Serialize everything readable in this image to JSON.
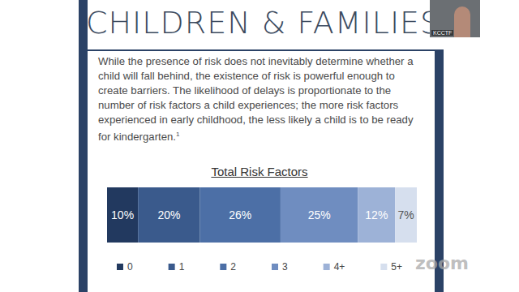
{
  "slide": {
    "title": "CHILDREN & FAMILIES",
    "body": "While the presence of risk does not inevitably determine whether a child will fall behind, the existence of risk is powerful enough to create barriers. The likelihood of delays is proportionate to the number of risk factors a child experiences; the more risk factors experienced in early childhood, the less likely a child is to be ready for kindergarten.",
    "footnote_mark": "1"
  },
  "overlay": {
    "webcam_label": "KCCTF",
    "watermark": "zoom"
  },
  "chart_data": {
    "type": "bar",
    "title": "Total Risk Factors",
    "orientation": "horizontal",
    "stacked": true,
    "data_labels": true,
    "tick_labels": false,
    "grid": false,
    "legend": "bottom",
    "xlim": [
      0,
      100
    ],
    "series": [
      {
        "name": "0",
        "color": "#22395f",
        "values": [
          10
        ],
        "value_labels": [
          "10%"
        ]
      },
      {
        "name": "1",
        "color": "#3a5a8c",
        "values": [
          20
        ],
        "value_labels": [
          "20%"
        ]
      },
      {
        "name": "2",
        "color": "#4c6fa6",
        "values": [
          26
        ],
        "value_labels": [
          "26%"
        ]
      },
      {
        "name": "3",
        "color": "#6f8dc0",
        "values": [
          25
        ],
        "value_labels": [
          "25%"
        ]
      },
      {
        "name": "4+",
        "color": "#9db2d7",
        "values": [
          12
        ],
        "value_labels": [
          "12%"
        ]
      },
      {
        "name": "5+",
        "color": "#d6dfee",
        "values": [
          7
        ],
        "value_labels": [
          "7%"
        ]
      }
    ]
  }
}
